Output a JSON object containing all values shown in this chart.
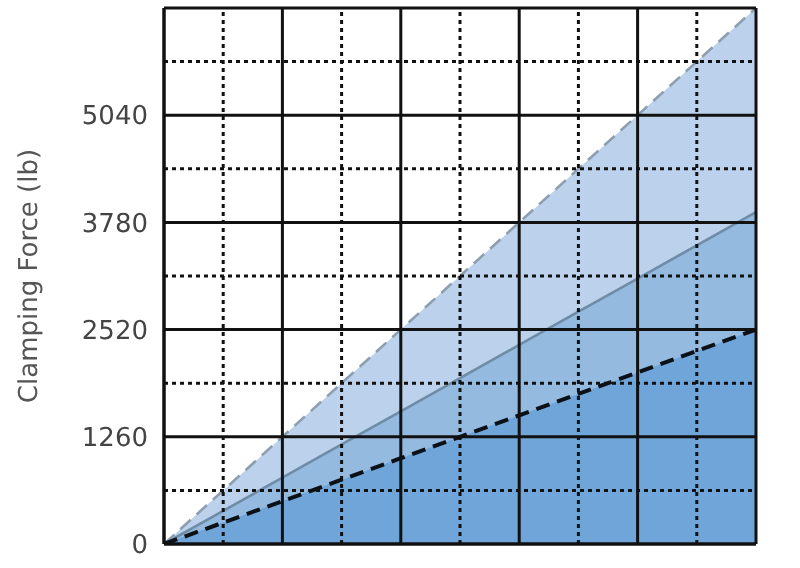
{
  "chart_data": {
    "type": "area",
    "ylabel": "Clamping Force (lb)",
    "categories": [
      null,
      null,
      null,
      null,
      null,
      null,
      null,
      null,
      null,
      null,
      null
    ],
    "series": [
      {
        "color": "#bcd2ec",
        "line_style": "dashed",
        "values": [
          0,
          630,
          1260,
          1890,
          2520,
          3150,
          3780,
          4410,
          5040,
          5670,
          6300
        ]
      },
      {
        "color": "#94badf",
        "line_style": "solid",
        "values": [
          0,
          390,
          780,
          1170,
          1560,
          1950,
          2340,
          2730,
          3120,
          3510,
          3900
        ]
      },
      {
        "color": "#70a5d9",
        "line_style": "dashed",
        "values": [
          0,
          252,
          504,
          756,
          1008,
          1260,
          1512,
          1764,
          2016,
          2268,
          2520
        ]
      }
    ],
    "ylim": [
      0,
      6300
    ],
    "yticks": [
      0,
      1260,
      2520,
      3780,
      5040,
      {
        "value": 6300,
        "label": null
      }
    ],
    "grid": true,
    "tick_labels": "y"
  }
}
